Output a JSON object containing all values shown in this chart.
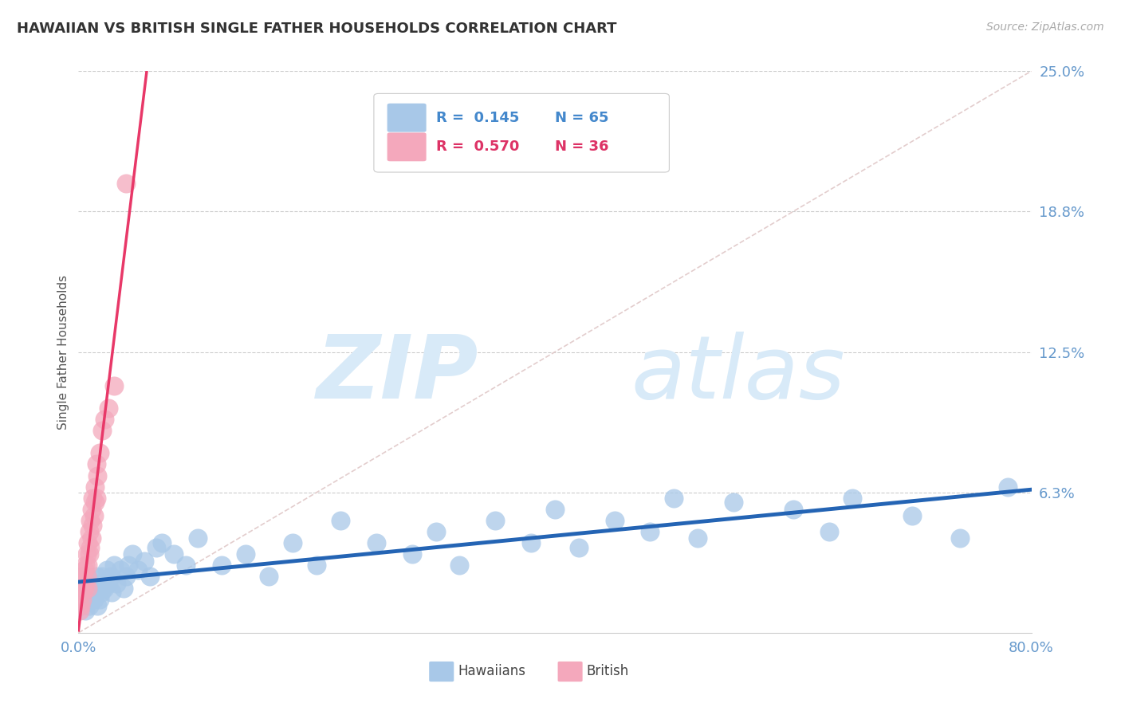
{
  "title": "HAWAIIAN VS BRITISH SINGLE FATHER HOUSEHOLDS CORRELATION CHART",
  "source": "Source: ZipAtlas.com",
  "ylabel": "Single Father Households",
  "xlim": [
    0.0,
    0.8
  ],
  "ylim": [
    0.0,
    0.25
  ],
  "yticks": [
    0.0,
    0.0625,
    0.125,
    0.1875,
    0.25
  ],
  "ytick_labels": [
    "",
    "6.3%",
    "12.5%",
    "18.8%",
    "25.0%"
  ],
  "hawaiian_color": "#a8c8e8",
  "british_color": "#f4a8bc",
  "hawaiian_R": 0.145,
  "hawaiian_N": 65,
  "british_R": 0.57,
  "british_N": 36,
  "hawaiian_line_color": "#2464b4",
  "british_line_color": "#e83868",
  "ref_line_color": "#e0c8c8",
  "background_color": "#ffffff",
  "grid_color": "#cccccc",
  "axis_label_color": "#6699cc",
  "legend_text_color_h": "#4488cc",
  "legend_text_color_b": "#dd3366",
  "watermark_color": "#d8eaf8",
  "hawaiian_x": [
    0.002,
    0.003,
    0.004,
    0.005,
    0.006,
    0.007,
    0.008,
    0.009,
    0.01,
    0.01,
    0.011,
    0.012,
    0.013,
    0.014,
    0.015,
    0.016,
    0.017,
    0.018,
    0.019,
    0.02,
    0.022,
    0.024,
    0.025,
    0.027,
    0.028,
    0.03,
    0.032,
    0.035,
    0.038,
    0.04,
    0.042,
    0.045,
    0.05,
    0.055,
    0.06,
    0.065,
    0.07,
    0.08,
    0.09,
    0.1,
    0.12,
    0.14,
    0.16,
    0.18,
    0.2,
    0.22,
    0.25,
    0.28,
    0.3,
    0.32,
    0.35,
    0.38,
    0.4,
    0.42,
    0.45,
    0.48,
    0.5,
    0.52,
    0.55,
    0.6,
    0.63,
    0.65,
    0.7,
    0.74,
    0.78
  ],
  "hawaiian_y": [
    0.025,
    0.02,
    0.015,
    0.02,
    0.01,
    0.025,
    0.018,
    0.012,
    0.022,
    0.015,
    0.02,
    0.018,
    0.015,
    0.022,
    0.025,
    0.012,
    0.02,
    0.015,
    0.018,
    0.025,
    0.02,
    0.028,
    0.022,
    0.025,
    0.018,
    0.03,
    0.022,
    0.028,
    0.02,
    0.025,
    0.03,
    0.035,
    0.028,
    0.032,
    0.025,
    0.038,
    0.04,
    0.035,
    0.03,
    0.042,
    0.03,
    0.035,
    0.025,
    0.04,
    0.03,
    0.05,
    0.04,
    0.035,
    0.045,
    0.03,
    0.05,
    0.04,
    0.055,
    0.038,
    0.05,
    0.045,
    0.06,
    0.042,
    0.058,
    0.055,
    0.045,
    0.06,
    0.052,
    0.042,
    0.065
  ],
  "british_x": [
    0.001,
    0.002,
    0.002,
    0.003,
    0.003,
    0.004,
    0.004,
    0.005,
    0.005,
    0.006,
    0.006,
    0.007,
    0.007,
    0.008,
    0.008,
    0.008,
    0.009,
    0.009,
    0.01,
    0.01,
    0.011,
    0.011,
    0.012,
    0.012,
    0.013,
    0.014,
    0.014,
    0.015,
    0.015,
    0.016,
    0.018,
    0.02,
    0.022,
    0.025,
    0.03,
    0.04
  ],
  "british_y": [
    0.01,
    0.012,
    0.018,
    0.015,
    0.022,
    0.018,
    0.025,
    0.02,
    0.028,
    0.022,
    0.03,
    0.025,
    0.035,
    0.03,
    0.04,
    0.02,
    0.035,
    0.045,
    0.038,
    0.05,
    0.042,
    0.055,
    0.048,
    0.06,
    0.052,
    0.058,
    0.065,
    0.06,
    0.075,
    0.07,
    0.08,
    0.09,
    0.095,
    0.1,
    0.11,
    0.2
  ]
}
